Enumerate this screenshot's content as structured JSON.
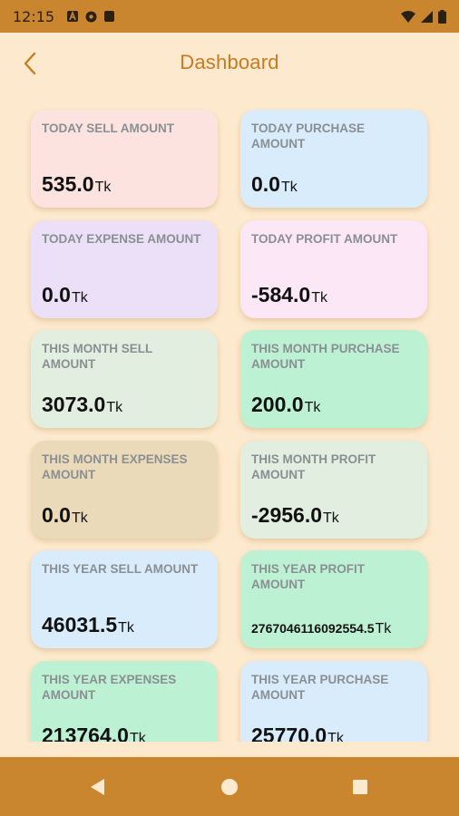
{
  "status_bar": {
    "time": "12:15"
  },
  "header": {
    "title": "Dashboard",
    "back_icon": "chevron-left-icon"
  },
  "cards": [
    {
      "label": "TODAY SELL AMOUNT",
      "value": "535.0",
      "unit": "Tk",
      "bg": "#fde3e0"
    },
    {
      "label": "TODAY PURCHASE AMOUNT",
      "value": "0.0",
      "unit": "Tk",
      "bg": "#d9ecfb"
    },
    {
      "label": "TODAY EXPENSE AMOUNT",
      "value": "0.0",
      "unit": "Tk",
      "bg": "#ece0f8"
    },
    {
      "label": "TODAY PROFIT AMOUNT",
      "value": "-584.0",
      "unit": "Tk",
      "bg": "#fbe7f5"
    },
    {
      "label": "THIS MONTH SELL AMOUNT",
      "value": "3073.0",
      "unit": "Tk",
      "bg": "#e2eedf"
    },
    {
      "label": "THIS MONTH PURCHASE AMOUNT",
      "value": "200.0",
      "unit": "Tk",
      "bg": "#bdf1d4"
    },
    {
      "label": "THIS MONTH EXPENSES AMOUNT",
      "value": "0.0",
      "unit": "Tk",
      "bg": "#ebdab9"
    },
    {
      "label": "THIS MONTH PROFIT AMOUNT",
      "value": "-2956.0",
      "unit": "Tk",
      "bg": "#e2eedf"
    },
    {
      "label": "THIS YEAR SELL AMOUNT",
      "value": "46031.5",
      "unit": "Tk",
      "bg": "#d9ecfb"
    },
    {
      "label": "THIS YEAR PROFIT AMOUNT",
      "value": "2767046116092554.5",
      "unit": "Tk",
      "bg": "#bdf1d4"
    },
    {
      "label": "THIS YEAR EXPENSES AMOUNT",
      "value": "213764.0",
      "unit": "Tk",
      "bg": "#bdf1d4"
    },
    {
      "label": "THIS YEAR PURCHASE AMOUNT",
      "value": "25770.0",
      "unit": "Tk",
      "bg": "#d9ecfb"
    }
  ],
  "nav_bar": {
    "back_icon": "triangle-back-icon",
    "home_icon": "circle-home-icon",
    "recents_icon": "square-recents-icon"
  }
}
